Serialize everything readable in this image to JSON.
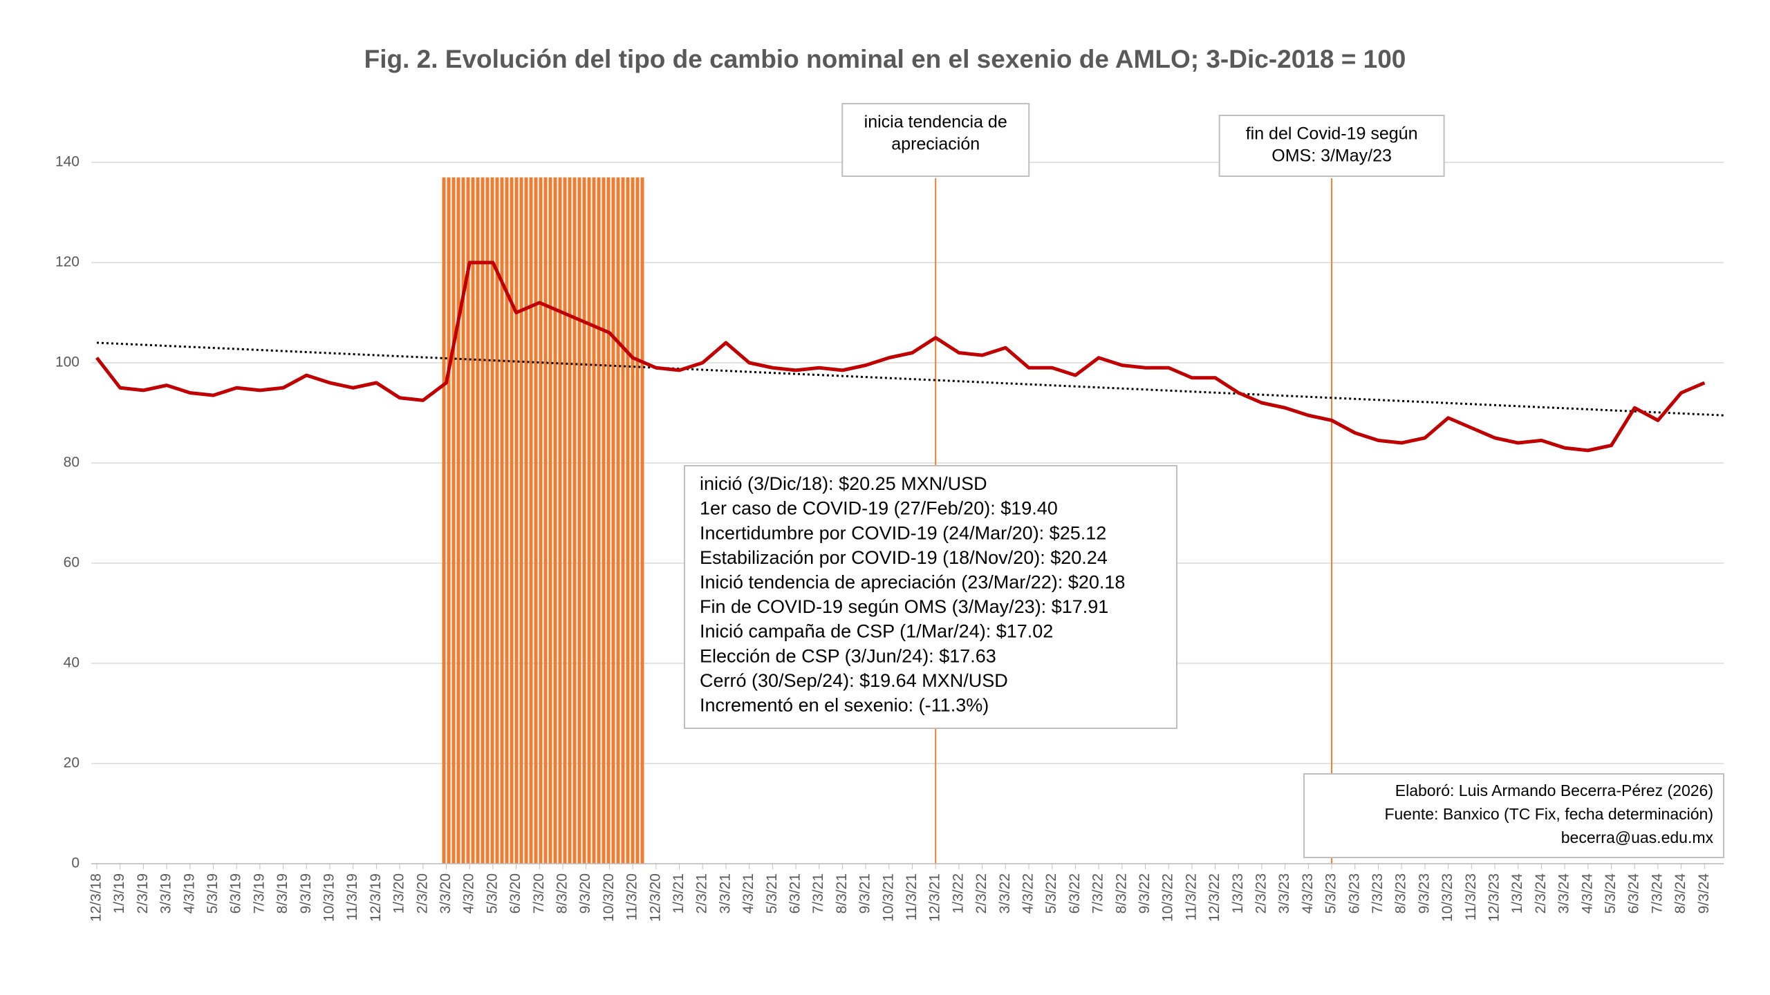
{
  "chart_data": {
    "type": "line",
    "title": "Fig. 2. Evolución del tipo de cambio nominal en el sexenio de AMLO; 3-Dic-2018 = 100",
    "categories": [
      "12/3/18",
      "1/3/19",
      "2/3/19",
      "3/3/19",
      "4/3/19",
      "5/3/19",
      "6/3/19",
      "7/3/19",
      "8/3/19",
      "9/3/19",
      "10/3/19",
      "11/3/19",
      "12/3/19",
      "1/3/20",
      "2/3/20",
      "3/3/20",
      "4/3/20",
      "5/3/20",
      "6/3/20",
      "7/3/20",
      "8/3/20",
      "9/3/20",
      "10/3/20",
      "11/3/20",
      "12/3/20",
      "1/3/21",
      "2/3/21",
      "3/3/21",
      "4/3/21",
      "5/3/21",
      "6/3/21",
      "7/3/21",
      "8/3/21",
      "9/3/21",
      "10/3/21",
      "11/3/21",
      "12/3/21",
      "1/3/22",
      "2/3/22",
      "3/3/22",
      "4/3/22",
      "5/3/22",
      "6/3/22",
      "7/3/22",
      "8/3/22",
      "9/3/22",
      "10/3/22",
      "11/3/22",
      "12/3/22",
      "1/3/23",
      "2/3/23",
      "3/3/23",
      "4/3/23",
      "5/3/23",
      "6/3/23",
      "7/3/23",
      "8/3/23",
      "9/3/23",
      "10/3/23",
      "11/3/23",
      "12/3/23",
      "1/3/24",
      "2/3/24",
      "3/3/24",
      "4/3/24",
      "5/3/24",
      "6/3/24",
      "7/3/24",
      "8/3/24",
      "9/3/24"
    ],
    "values": [
      101,
      95,
      94.5,
      95.5,
      94,
      93.5,
      95,
      94.5,
      95,
      97.5,
      96,
      95,
      96,
      93,
      92.5,
      96,
      120,
      120,
      110,
      112,
      110,
      108,
      106,
      101,
      99,
      98.5,
      100,
      104,
      100,
      99,
      98.5,
      99,
      98.5,
      99.5,
      101,
      102,
      105,
      102,
      101.5,
      103,
      99,
      99,
      97.5,
      101,
      99.5,
      99,
      99,
      97,
      97,
      94,
      92,
      91,
      89.5,
      88.5,
      86,
      84.5,
      84,
      85,
      89,
      87,
      85,
      84,
      84.5,
      83,
      82.5,
      83.5,
      91,
      88.5,
      94,
      96
    ],
    "color": "#c00000",
    "ylim": [
      0,
      140
    ],
    "yticks": [
      0,
      20,
      40,
      60,
      80,
      100,
      120,
      140
    ],
    "grid": true,
    "highlight": {
      "from": "3/3/20",
      "to": "11/3/20",
      "value": 137,
      "color": "#ed7d31"
    },
    "trendline": {
      "start": 104,
      "end": 89.5,
      "color": "#000000"
    },
    "annotations": [
      {
        "at": "12/3/21",
        "lines": [
          "inicia tendencia de",
          "apreciación"
        ]
      },
      {
        "at": "5/3/23",
        "lines": [
          "fin del Covid-19 según",
          "OMS: 3/May/23"
        ]
      }
    ],
    "notes": [
      "inició (3/Dic/18): $20.25 MXN/USD",
      "1er caso de COVID-19 (27/Feb/20): $19.40",
      "Incertidumbre por COVID-19 (24/Mar/20): $25.12",
      "Estabilización por COVID-19 (18/Nov/20): $20.24",
      "Inició tendencia de apreciación (23/Mar/22): $20.18",
      "Fin de COVID-19 según OMS (3/May/23): $17.91",
      "Inició campaña de CSP (1/Mar/24): $17.02",
      "Elección de CSP (3/Jun/24): $17.63",
      "Cerró (30/Sep/24): $19.64 MXN/USD",
      "Incrementó en el sexenio: (-11.3%)"
    ],
    "credit": [
      "Elaboró: Luis Armando Becerra-Pérez (2026)",
      "Fuente: Banxico (TC Fix, fecha determinación)",
      "becerra@uas.edu.mx"
    ]
  }
}
